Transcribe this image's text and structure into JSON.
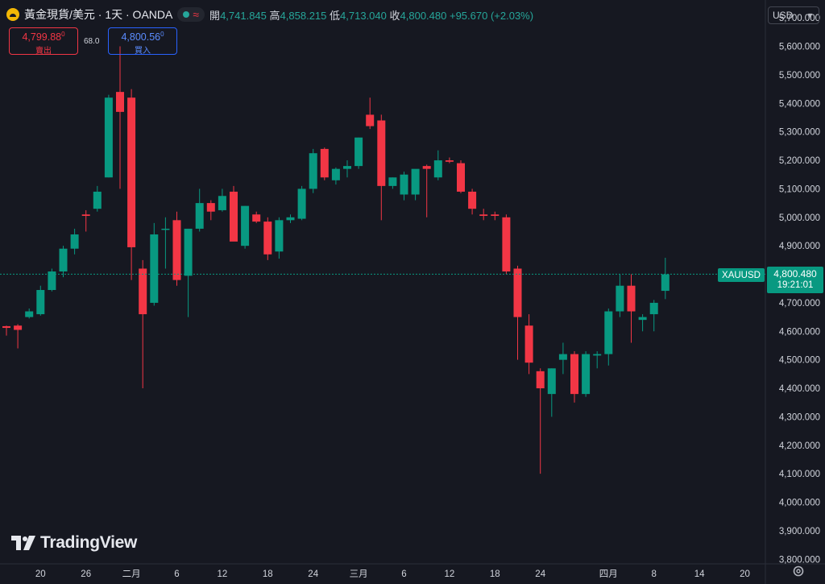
{
  "header": {
    "symbol": "黃金現貨/美元 · 1天 · OANDA",
    "status_glyph": "≈",
    "open_label": "開",
    "open": "4,741.845",
    "high_label": "高",
    "high": "4,858.215",
    "low_label": "低",
    "low": "4,713.040",
    "close_label": "收",
    "close": "4,800.480",
    "change": "+95.670 (+2.03%)"
  },
  "trade": {
    "sell_price": "4,799.88",
    "sell_sup": "0",
    "sell_label": "賣出",
    "spread": "68.0",
    "buy_price": "4,800.56",
    "buy_sup": "0",
    "buy_label": "買入"
  },
  "currency": {
    "value": "USD"
  },
  "last_price": {
    "symbol": "XAUUSD",
    "price": "4,800.480",
    "countdown": "19:21:01"
  },
  "branding": {
    "name": "TradingView"
  },
  "colors": {
    "up": "#089981",
    "down": "#f23645",
    "background": "#161821",
    "grid": "#22252e",
    "text": "#d1d4dc"
  },
  "chart_data": {
    "type": "candlestick",
    "symbol": "XAUUSD",
    "interval": "1D",
    "y_ticks": [
      "3,800.000",
      "3,900.000",
      "4,000.000",
      "4,100.000",
      "4,200.000",
      "4,300.000",
      "4,400.000",
      "4,500.000",
      "4,600.000",
      "4,700.000",
      "4,800.000",
      "4,900.000",
      "5,000.000",
      "5,100.000",
      "5,200.000",
      "5,300.000",
      "5,400.000",
      "5,500.000",
      "5,600.000",
      "5,700.000"
    ],
    "ylim": [
      3750,
      5740
    ],
    "x_ticks": [
      {
        "label": "20",
        "index": 3
      },
      {
        "label": "26",
        "index": 7
      },
      {
        "label": "二月",
        "index": 11
      },
      {
        "label": "6",
        "index": 15
      },
      {
        "label": "12",
        "index": 19
      },
      {
        "label": "18",
        "index": 23
      },
      {
        "label": "24",
        "index": 27
      },
      {
        "label": "三月",
        "index": 31
      },
      {
        "label": "6",
        "index": 35
      },
      {
        "label": "12",
        "index": 39
      },
      {
        "label": "18",
        "index": 43
      },
      {
        "label": "24",
        "index": 47
      },
      {
        "label": "四月",
        "index": 53
      },
      {
        "label": "8",
        "index": 57
      },
      {
        "label": "14",
        "index": 61
      },
      {
        "label": "20",
        "index": 65
      }
    ],
    "candles": [
      {
        "o": 4618,
        "h": 4620,
        "l": 4585,
        "c": 4612
      },
      {
        "o": 4620,
        "h": 4625,
        "l": 4540,
        "c": 4605
      },
      {
        "o": 4650,
        "h": 4680,
        "l": 4645,
        "c": 4670
      },
      {
        "o": 4660,
        "h": 4760,
        "l": 4655,
        "c": 4745
      },
      {
        "o": 4745,
        "h": 4820,
        "l": 4740,
        "c": 4810
      },
      {
        "o": 4810,
        "h": 4900,
        "l": 4790,
        "c": 4890
      },
      {
        "o": 4890,
        "h": 4960,
        "l": 4870,
        "c": 4940
      },
      {
        "o": 5010,
        "h": 5025,
        "l": 4950,
        "c": 5005
      },
      {
        "o": 5030,
        "h": 5110,
        "l": 5020,
        "c": 5090
      },
      {
        "o": 5140,
        "h": 5430,
        "l": 5140,
        "c": 5420
      },
      {
        "o": 5440,
        "h": 5600,
        "l": 5100,
        "c": 5370
      },
      {
        "o": 5420,
        "h": 5450,
        "l": 4780,
        "c": 4895
      },
      {
        "o": 4820,
        "h": 4850,
        "l": 4400,
        "c": 4660
      },
      {
        "o": 4700,
        "h": 4980,
        "l": 4690,
        "c": 4940
      },
      {
        "o": 4960,
        "h": 5000,
        "l": 4820,
        "c": 4960
      },
      {
        "o": 4990,
        "h": 5020,
        "l": 4760,
        "c": 4780
      },
      {
        "o": 4795,
        "h": 4960,
        "l": 4650,
        "c": 4960
      },
      {
        "o": 4960,
        "h": 5100,
        "l": 4950,
        "c": 5050
      },
      {
        "o": 5050,
        "h": 5060,
        "l": 4990,
        "c": 5020
      },
      {
        "o": 5025,
        "h": 5100,
        "l": 5020,
        "c": 5075
      },
      {
        "o": 5090,
        "h": 5110,
        "l": 4920,
        "c": 4915
      },
      {
        "o": 4900,
        "h": 5040,
        "l": 4890,
        "c": 5040
      },
      {
        "o": 5010,
        "h": 5020,
        "l": 4980,
        "c": 4985
      },
      {
        "o": 4985,
        "h": 5000,
        "l": 4850,
        "c": 4870
      },
      {
        "o": 4880,
        "h": 5000,
        "l": 4855,
        "c": 4990
      },
      {
        "o": 4990,
        "h": 5010,
        "l": 4980,
        "c": 5000
      },
      {
        "o": 4995,
        "h": 5110,
        "l": 4990,
        "c": 5100
      },
      {
        "o": 5100,
        "h": 5240,
        "l": 5085,
        "c": 5225
      },
      {
        "o": 5240,
        "h": 5245,
        "l": 5130,
        "c": 5140
      },
      {
        "o": 5130,
        "h": 5175,
        "l": 5115,
        "c": 5170
      },
      {
        "o": 5170,
        "h": 5200,
        "l": 5140,
        "c": 5180
      },
      {
        "o": 5180,
        "h": 5280,
        "l": 5170,
        "c": 5280
      },
      {
        "o": 5360,
        "h": 5420,
        "l": 5310,
        "c": 5320
      },
      {
        "o": 5340,
        "h": 5360,
        "l": 4990,
        "c": 5110
      },
      {
        "o": 5110,
        "h": 5140,
        "l": 5100,
        "c": 5140
      },
      {
        "o": 5080,
        "h": 5160,
        "l": 5060,
        "c": 5150
      },
      {
        "o": 5080,
        "h": 5160,
        "l": 5060,
        "c": 5170
      },
      {
        "o": 5180,
        "h": 5185,
        "l": 5000,
        "c": 5170
      },
      {
        "o": 5140,
        "h": 5235,
        "l": 5130,
        "c": 5200
      },
      {
        "o": 5200,
        "h": 5210,
        "l": 5190,
        "c": 5195
      },
      {
        "o": 5190,
        "h": 5200,
        "l": 5085,
        "c": 5090
      },
      {
        "o": 5090,
        "h": 5100,
        "l": 5010,
        "c": 5030
      },
      {
        "o": 5010,
        "h": 5030,
        "l": 4990,
        "c": 5005
      },
      {
        "o": 5010,
        "h": 5020,
        "l": 4990,
        "c": 5005
      },
      {
        "o": 5000,
        "h": 5010,
        "l": 4800,
        "c": 4810
      },
      {
        "o": 4820,
        "h": 4830,
        "l": 4500,
        "c": 4650
      },
      {
        "o": 4620,
        "h": 4660,
        "l": 4450,
        "c": 4490
      },
      {
        "o": 4460,
        "h": 4470,
        "l": 4100,
        "c": 4400
      },
      {
        "o": 4380,
        "h": 4470,
        "l": 4300,
        "c": 4470
      },
      {
        "o": 4500,
        "h": 4560,
        "l": 4450,
        "c": 4520
      },
      {
        "o": 4520,
        "h": 4530,
        "l": 4350,
        "c": 4380
      },
      {
        "o": 4380,
        "h": 4530,
        "l": 4370,
        "c": 4520
      },
      {
        "o": 4515,
        "h": 4530,
        "l": 4470,
        "c": 4520
      },
      {
        "o": 4520,
        "h": 4680,
        "l": 4480,
        "c": 4670
      },
      {
        "o": 4670,
        "h": 4800,
        "l": 4650,
        "c": 4760
      },
      {
        "o": 4760,
        "h": 4800,
        "l": 4560,
        "c": 4670
      },
      {
        "o": 4640,
        "h": 4660,
        "l": 4600,
        "c": 4650
      },
      {
        "o": 4660,
        "h": 4710,
        "l": 4600,
        "c": 4700
      },
      {
        "o": 4742,
        "h": 4858,
        "l": 4713,
        "c": 4800
      }
    ],
    "last_price": 4800.48
  }
}
